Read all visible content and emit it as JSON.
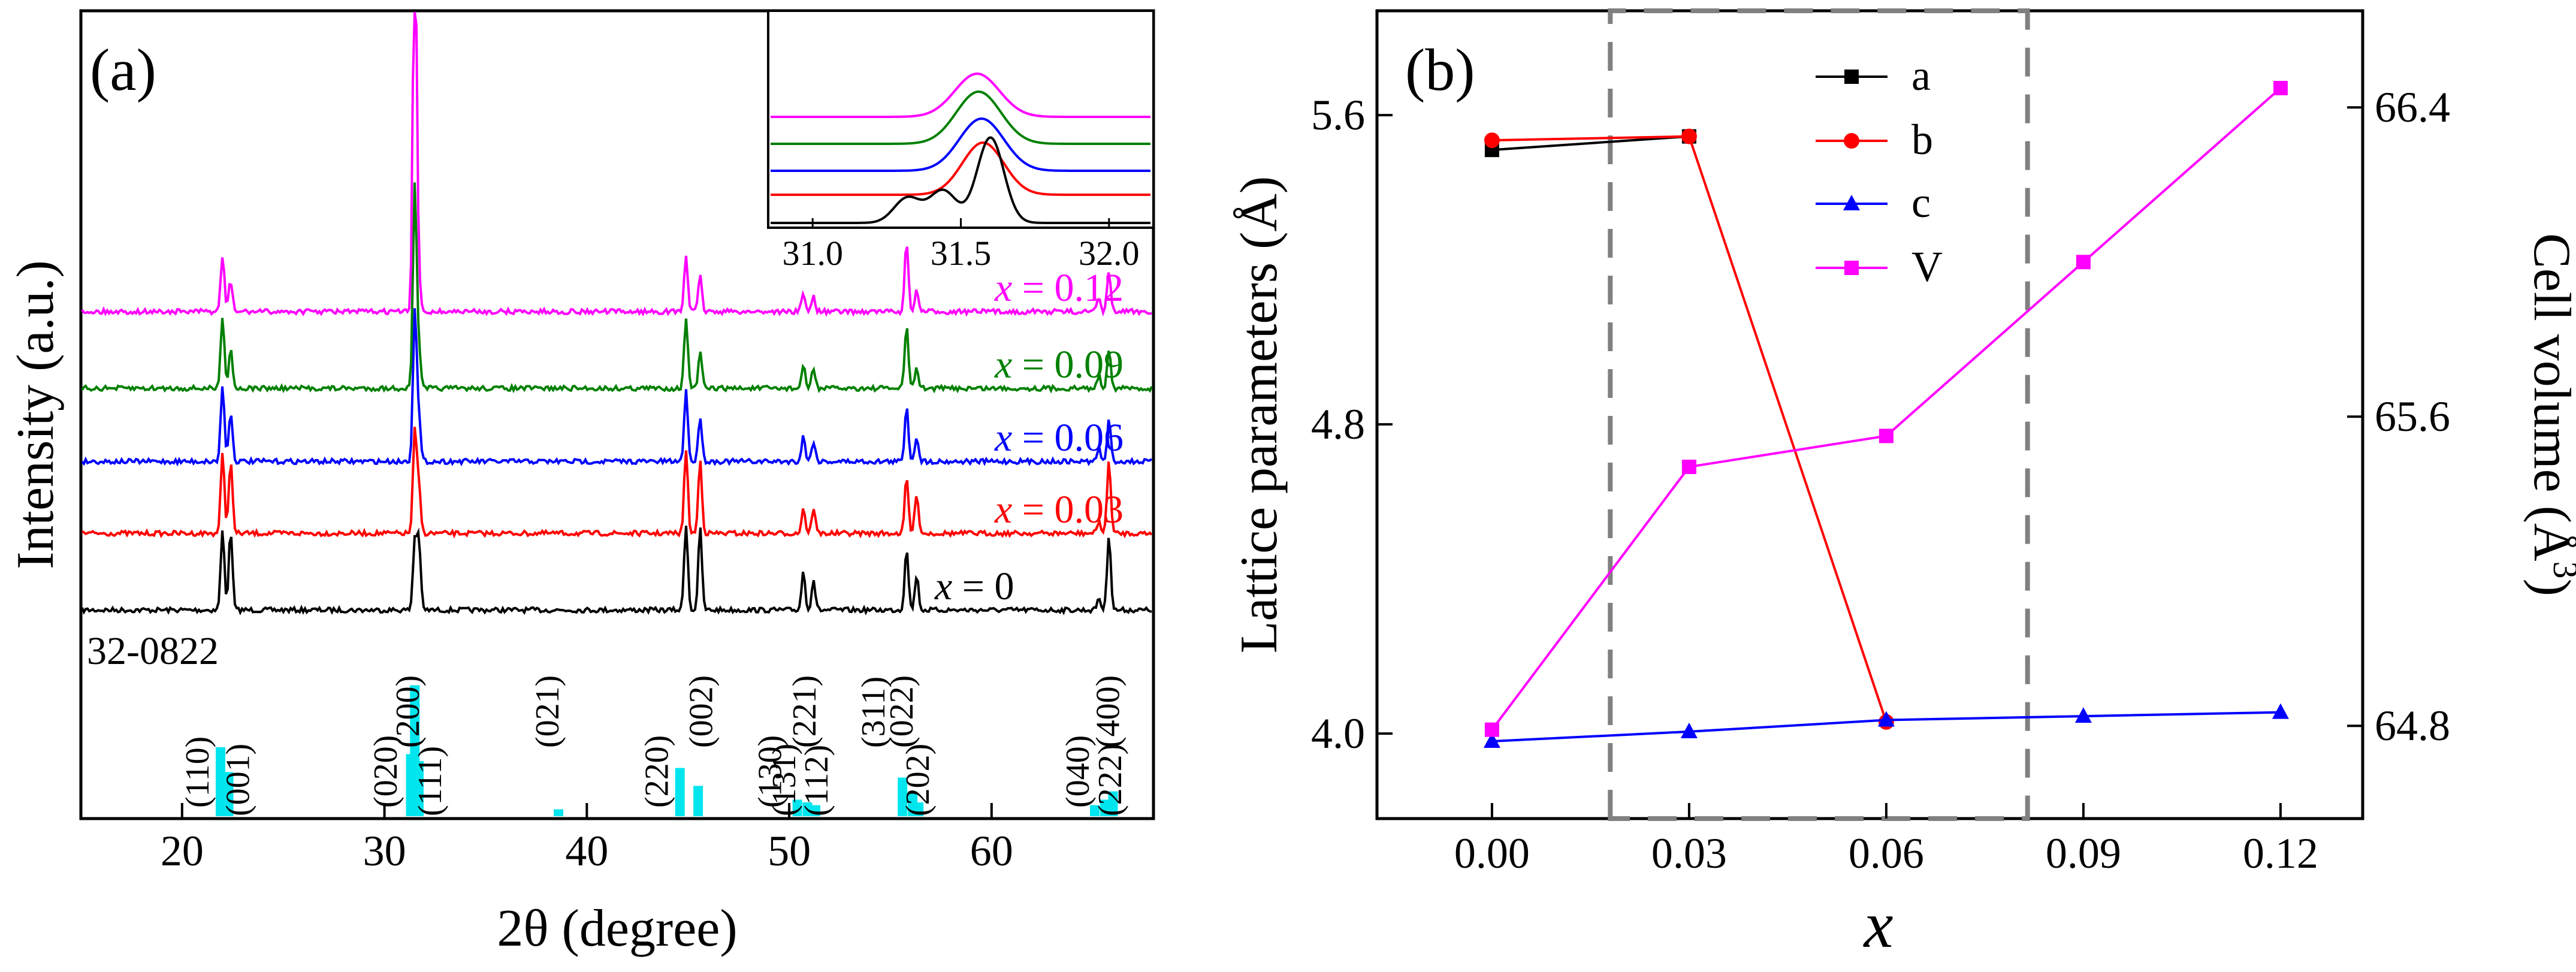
{
  "chart_data": [
    {
      "panel": "(a)",
      "type": "line",
      "xlabel": "2θ (degree)",
      "ylabel": "Intensity (a.u.)",
      "xlim": [
        15,
        68
      ],
      "xticks": [
        "20",
        "30",
        "40",
        "50",
        "60"
      ],
      "peak_positions": [
        22.0,
        22.4,
        31.5,
        31.7,
        44.9,
        45.6,
        50.7,
        51.2,
        55.8,
        56.3,
        65.3,
        65.8
      ],
      "series": [
        {
          "name": "x = 0",
          "label_var": "x",
          "label_value": " = 0",
          "color": "#000000",
          "peak_heights": [
            0.78,
            0.78,
            0.68,
            0.68,
            0.85,
            0.8,
            0.38,
            0.3,
            0.62,
            0.34,
            0.12,
            0.75
          ]
        },
        {
          "name": "x = 0.03",
          "label_var": "x",
          "label_value": " = 0.03",
          "color": "#ff0000",
          "peak_heights": [
            0.78,
            0.72,
            1.0,
            0.45,
            0.82,
            0.72,
            0.25,
            0.25,
            0.55,
            0.4,
            0.12,
            0.72
          ]
        },
        {
          "name": "x = 0.06",
          "label_var": "x",
          "label_value": " = 0.06",
          "color": "#0000ff",
          "peak_heights": [
            0.75,
            0.5,
            1.5,
            0.4,
            0.7,
            0.45,
            0.25,
            0.2,
            0.55,
            0.25,
            0.12,
            0.4
          ]
        },
        {
          "name": "x = 0.09",
          "label_var": "x",
          "label_value": " = 0.09",
          "color": "#008000",
          "peak_heights": [
            0.72,
            0.4,
            2.0,
            0.35,
            0.7,
            0.35,
            0.22,
            0.2,
            0.62,
            0.2,
            0.12,
            0.4
          ]
        },
        {
          "name": "x = 0.12",
          "label_var": "x",
          "label_value": " = 0.12",
          "color": "#ff00ff",
          "peak_heights": [
            0.55,
            0.3,
            4.0,
            0.3,
            0.55,
            0.35,
            0.18,
            0.15,
            0.68,
            0.2,
            0.12,
            0.38
          ]
        }
      ],
      "reference": {
        "card": "32-0822",
        "color": "#00e5ee",
        "bars": [
          {
            "x": 21.9,
            "h": 0.5
          },
          {
            "x": 22.3,
            "h": 0.32
          },
          {
            "x": 31.3,
            "h": 0.45
          },
          {
            "x": 31.5,
            "h": 0.95
          },
          {
            "x": 31.7,
            "h": 0.4
          },
          {
            "x": 38.6,
            "h": 0.05
          },
          {
            "x": 44.6,
            "h": 0.35
          },
          {
            "x": 45.5,
            "h": 0.22
          },
          {
            "x": 50.4,
            "h": 0.12
          },
          {
            "x": 50.9,
            "h": 0.1
          },
          {
            "x": 51.3,
            "h": 0.08
          },
          {
            "x": 55.6,
            "h": 0.28
          },
          {
            "x": 56.1,
            "h": 0.18
          },
          {
            "x": 56.4,
            "h": 0.1
          },
          {
            "x": 65.1,
            "h": 0.08
          },
          {
            "x": 65.6,
            "h": 0.12
          },
          {
            "x": 66.0,
            "h": 0.18
          }
        ],
        "hkl_labels": [
          {
            "text": "(110)",
            "x": 21.3,
            "row": "up"
          },
          {
            "text": "(001)",
            "x": 23.3,
            "row": "down"
          },
          {
            "text": "(020)",
            "x": 30.6,
            "row": "up"
          },
          {
            "text": "(200)",
            "x": 31.7,
            "row": "top"
          },
          {
            "text": "(111)",
            "x": 32.8,
            "row": "down"
          },
          {
            "text": "(021)",
            "x": 38.6,
            "row": "mid"
          },
          {
            "text": "(220)",
            "x": 44.0,
            "row": "up"
          },
          {
            "text": "(002)",
            "x": 46.2,
            "row": "mid"
          },
          {
            "text": "(130)",
            "x": 49.6,
            "row": "up"
          },
          {
            "text": "(221)",
            "x": 51.3,
            "row": "top"
          },
          {
            "text": "(131)",
            "x": 50.3,
            "row": "down"
          },
          {
            "text": "(112)",
            "x": 51.9,
            "row": "down"
          },
          {
            "text": "(311)",
            "x": 54.7,
            "row": "mid"
          },
          {
            "text": "(022)",
            "x": 56.1,
            "row": "top"
          },
          {
            "text": "(202)",
            "x": 56.9,
            "row": "down"
          },
          {
            "text": "(040)",
            "x": 64.8,
            "row": "up"
          },
          {
            "text": "(400)",
            "x": 66.3,
            "row": "top"
          },
          {
            "text": "(222)",
            "x": 66.4,
            "row": "down"
          }
        ]
      },
      "inset": {
        "xlim": [
          30.85,
          32.15
        ],
        "xticks": [
          "31.0",
          "31.5",
          "32.0"
        ],
        "series": [
          {
            "name": "x = 0.12",
            "color": "#ff00ff",
            "center": 31.555,
            "width": 0.075,
            "height": 0.48
          },
          {
            "name": "x = 0.09",
            "color": "#008000",
            "center": 31.56,
            "width": 0.075,
            "height": 0.58
          },
          {
            "name": "x = 0.06",
            "color": "#0000ff",
            "center": 31.57,
            "width": 0.075,
            "height": 0.58
          },
          {
            "name": "x = 0.03",
            "color": "#ff0000",
            "center": 31.575,
            "width": 0.07,
            "height": 0.58
          },
          {
            "name": "x = 0",
            "color": "#000000",
            "center": 31.6,
            "width": 0.045,
            "height": 0.95
          }
        ]
      }
    },
    {
      "panel": "(b)",
      "type": "line",
      "xlabel": "x",
      "ylabel": "Lattice parameters (Å)",
      "y2label": "Cell volume (Å",
      "y2label_sup": "3",
      "y2label_close": ")",
      "x": [
        0.0,
        0.03,
        0.06,
        0.09,
        0.12
      ],
      "xticks": [
        "0.00",
        "0.03",
        "0.06",
        "0.09",
        "0.12"
      ],
      "xlim": [
        -0.0175,
        0.1325
      ],
      "ylim": [
        3.78,
        5.87
      ],
      "yticks": [
        "4.0",
        "4.8",
        "5.6"
      ],
      "y2lim": [
        64.56,
        66.65
      ],
      "y2ticks": [
        "64.8",
        "65.6",
        "66.4"
      ],
      "series": [
        {
          "name": "a",
          "axis": "left",
          "color": "#000000",
          "marker": "square",
          "x": [
            0.0,
            0.03
          ],
          "values": [
            5.51,
            5.545
          ]
        },
        {
          "name": "b",
          "axis": "left",
          "color": "#ff0000",
          "marker": "circle",
          "x": [
            0.0,
            0.03,
            0.06
          ],
          "values": [
            5.535,
            5.545,
            4.03
          ]
        },
        {
          "name": "c",
          "axis": "left",
          "color": "#0000ff",
          "marker": "triangle",
          "x": [
            0.0,
            0.03,
            0.06,
            0.09,
            0.12
          ],
          "values": [
            3.98,
            4.005,
            4.035,
            4.045,
            4.055
          ]
        },
        {
          "name": "V",
          "axis": "right",
          "color": "#ff00ff",
          "marker": "square",
          "x": [
            0.0,
            0.03,
            0.06,
            0.09,
            0.12
          ],
          "values": [
            64.79,
            65.47,
            65.55,
            66.0,
            66.45
          ]
        }
      ],
      "highlight_region": {
        "x_from": 0.018,
        "x_to": 0.0815,
        "style": "dashed gray box"
      }
    }
  ]
}
